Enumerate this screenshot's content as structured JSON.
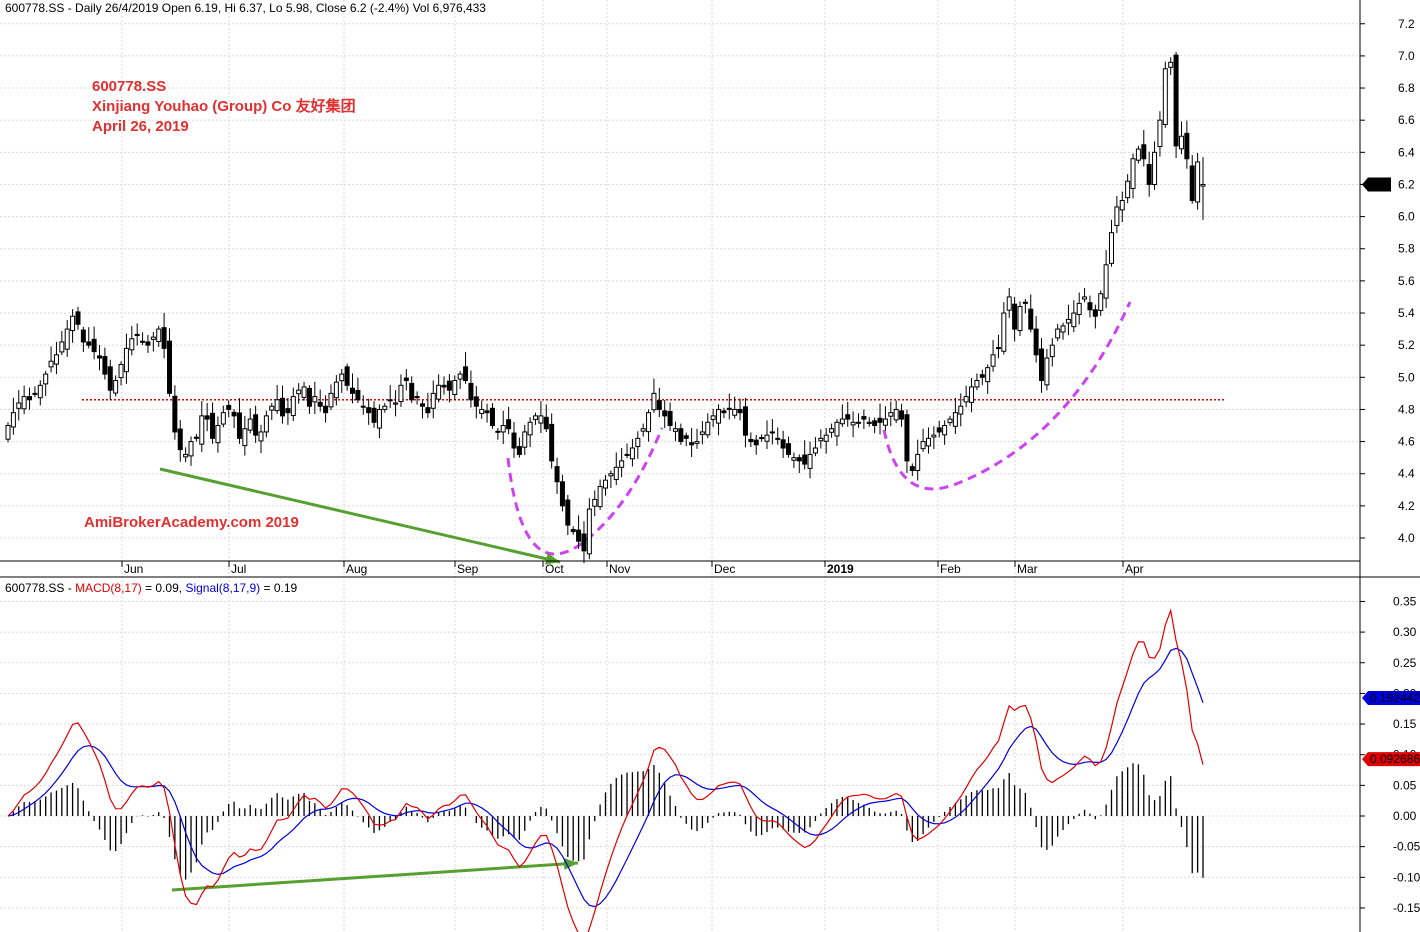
{
  "header": {
    "price_title": "600778.SS - Daily 26/4/2019 Open 6.19, Hi 6.37, Lo 5.98, Close 6.2 (-2.4%) Vol 6,976,433",
    "macd_prefix": "600778.SS - ",
    "macd_label": "MACD(8,17)",
    "macd_value": " = 0.09, ",
    "signal_label": "Signal(8,17,9)",
    "signal_value": " = 0.19"
  },
  "annotation": {
    "line1": "600778.SS",
    "line2": "Xinjiang Youhao (Group) Co  友好集团",
    "line3": "April 26, 2019",
    "watermark": "AmiBrokerAcademy.com  2019"
  },
  "colors": {
    "macd": "#e00000",
    "signal": "#0000dd",
    "annotation": "#e03030",
    "support": "#e00000",
    "pattern": "#cc44ee",
    "divergence": "#55a030"
  },
  "chart_data": [
    {
      "type": "candlestick",
      "xlabels": [
        "Jun",
        "Jul",
        "Aug",
        "Sep",
        "Oct",
        "Nov",
        "Dec",
        "2019",
        "Feb",
        "Mar",
        "Apr"
      ],
      "yticks": [
        "4.0",
        "4.2",
        "4.4",
        "4.6",
        "4.8",
        "5.0",
        "5.2",
        "5.4",
        "5.6",
        "5.8",
        "6.0",
        "6.2",
        "6.4",
        "6.6",
        "6.8",
        "7.0",
        "7.2"
      ],
      "ylim": [
        3.83,
        7.33
      ],
      "last_price_label": "6.2",
      "support_level": 4.86,
      "closes": [
        4.7,
        4.78,
        4.84,
        4.88,
        4.86,
        4.9,
        4.95,
        5.02,
        5.1,
        5.14,
        5.22,
        5.3,
        5.38,
        5.33,
        5.22,
        5.2,
        5.16,
        5.12,
        5.02,
        4.92,
        4.98,
        5.08,
        5.18,
        5.24,
        5.26,
        5.22,
        5.2,
        5.25,
        5.3,
        5.18,
        4.9,
        4.66,
        4.55,
        4.52,
        4.6,
        4.62,
        4.76,
        4.74,
        4.62,
        4.7,
        4.78,
        4.8,
        4.76,
        4.62,
        4.68,
        4.74,
        4.64,
        4.66,
        4.76,
        4.82,
        4.86,
        4.76,
        4.78,
        4.88,
        4.92,
        4.94,
        4.82,
        4.88,
        4.82,
        4.78,
        4.9,
        4.97,
        5.02,
        4.95,
        4.9,
        4.86,
        4.82,
        4.78,
        4.72,
        4.8,
        4.82,
        4.86,
        4.84,
        4.95,
        4.98,
        4.86,
        4.88,
        4.82,
        4.78,
        4.9,
        4.95,
        4.94,
        4.92,
        4.98,
        5.02,
        4.98,
        4.86,
        4.82,
        4.8,
        4.78,
        4.7,
        4.66,
        4.7,
        4.68,
        4.56,
        4.52,
        4.66,
        4.72,
        4.76,
        4.76,
        4.68,
        4.48,
        4.35,
        4.2,
        4.08,
        4.04,
        3.98,
        3.92,
        4.18,
        4.24,
        4.32,
        4.36,
        4.4,
        4.44,
        4.48,
        4.52,
        4.56,
        4.62,
        4.68,
        4.78,
        4.9,
        4.8,
        4.76,
        4.7,
        4.68,
        4.6,
        4.62,
        4.58,
        4.6,
        4.66,
        4.72,
        4.76,
        4.8,
        4.78,
        4.8,
        4.8,
        4.78,
        4.64,
        4.6,
        4.58,
        4.62,
        4.64,
        4.66,
        4.62,
        4.56,
        4.52,
        4.5,
        4.48,
        4.46,
        4.52,
        4.56,
        4.62,
        4.64,
        4.68,
        4.72,
        4.74,
        4.74,
        4.72,
        4.72,
        4.74,
        4.72,
        4.7,
        4.72,
        4.74,
        4.78,
        4.8,
        4.74,
        4.48,
        4.42,
        4.52,
        4.6,
        4.62,
        4.64,
        4.66,
        4.7,
        4.74,
        4.78,
        4.82,
        4.88,
        4.94,
        4.98,
        5.0,
        5.06,
        5.14,
        5.18,
        5.4,
        5.5,
        5.3,
        5.44,
        5.46,
        5.3,
        5.14,
        4.98,
        5.12,
        5.2,
        5.3,
        5.32,
        5.36,
        5.4,
        5.46,
        5.5,
        5.42,
        5.38,
        5.52,
        5.7,
        5.9,
        6.06,
        6.1,
        6.22,
        6.36,
        6.42,
        6.36,
        6.2,
        6.4,
        6.6,
        6.92,
        6.96,
        6.44,
        6.5,
        6.36,
        6.1,
        6.34,
        6.2
      ]
    },
    {
      "type": "line-histogram",
      "yticks": [
        "-0.15",
        "-0.10",
        "-0.05",
        "0.00",
        "0.05",
        "0.10",
        "0.15",
        "0.20",
        "0.25",
        "0.30",
        "0.35"
      ],
      "ylim": [
        -0.17,
        0.375
      ],
      "series": [
        {
          "name": "MACD",
          "value_label": "0.092686"
        },
        {
          "name": "Signal",
          "value_label": "0.192442"
        }
      ],
      "histogram": "MACD - Signal"
    }
  ]
}
